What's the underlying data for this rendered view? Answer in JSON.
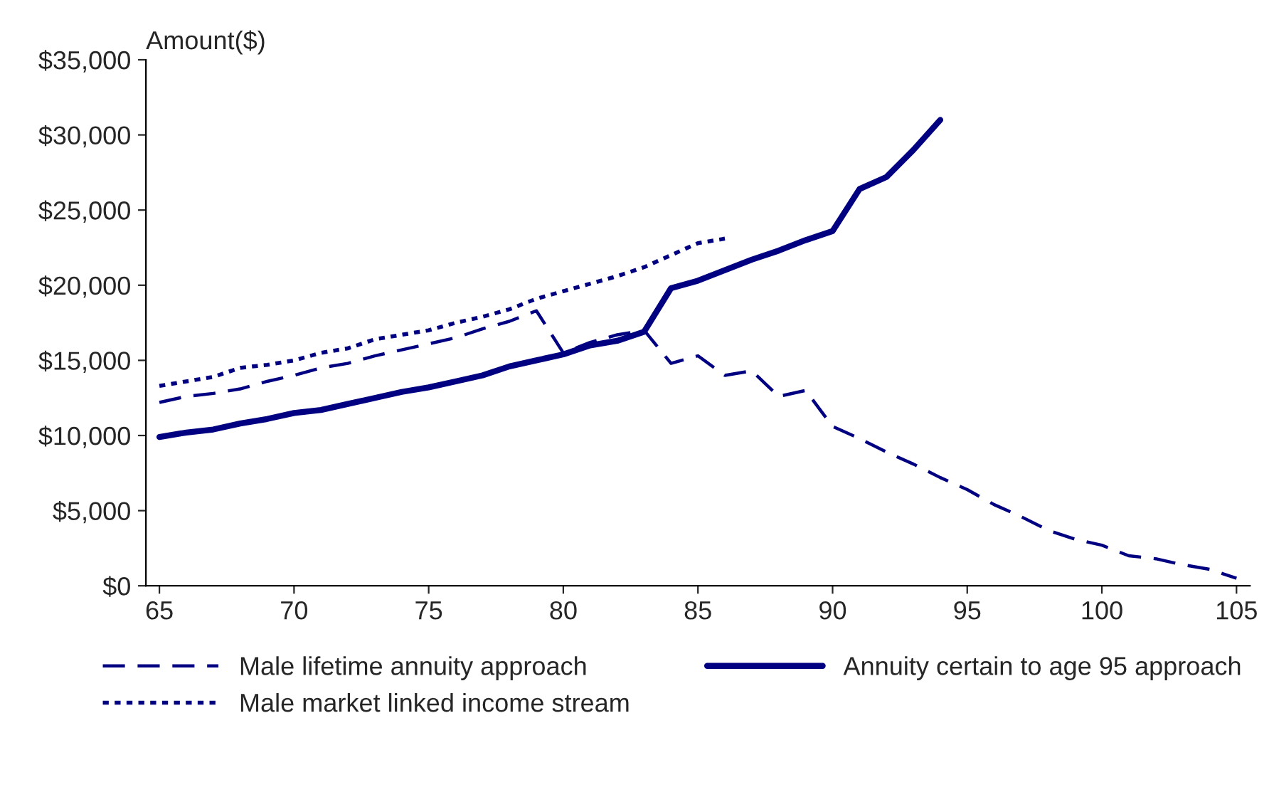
{
  "chart_data": {
    "type": "line",
    "ylabel": "Amount($)",
    "x": [
      65,
      66,
      67,
      68,
      69,
      70,
      71,
      72,
      73,
      74,
      75,
      76,
      77,
      78,
      79,
      80,
      81,
      82,
      83,
      84,
      85,
      86,
      87,
      88,
      89,
      90,
      91,
      92,
      93,
      94,
      95,
      96,
      97,
      98,
      99,
      100,
      101,
      102,
      103,
      104,
      105
    ],
    "series": [
      {
        "name": "Male lifetime annuity approach",
        "color": "#000080",
        "line_style": "dashed",
        "values": [
          12200,
          12600,
          12800,
          13100,
          13600,
          14000,
          14500,
          14800,
          15300,
          15700,
          16100,
          16500,
          17100,
          17600,
          18300,
          15500,
          16200,
          16700,
          17000,
          14800,
          15300,
          14000,
          14300,
          12600,
          13000,
          10600,
          9800,
          8900,
          8100,
          7200,
          6400,
          5400,
          4600,
          3700,
          3100,
          2700,
          2000,
          1800,
          1400,
          1100,
          500
        ]
      },
      {
        "name": "Annuity certain to age 95 approach",
        "color": "#000080",
        "line_style": "solid",
        "values": [
          9900,
          10200,
          10400,
          10800,
          11100,
          11500,
          11700,
          12100,
          12500,
          12900,
          13200,
          13600,
          14000,
          14600,
          15000,
          15400,
          16000,
          16300,
          16900,
          19800,
          20300,
          21000,
          21700,
          22300,
          23000,
          23600,
          26400,
          27200,
          29000,
          31000,
          null,
          null,
          null,
          null,
          null,
          null,
          null,
          null,
          null,
          null,
          null
        ]
      },
      {
        "name": "Male market linked income stream",
        "color": "#000080",
        "line_style": "dotted",
        "values": [
          13300,
          13600,
          13900,
          14500,
          14700,
          15000,
          15500,
          15800,
          16400,
          16700,
          17000,
          17500,
          17900,
          18400,
          19100,
          19600,
          20100,
          20600,
          21200,
          22000,
          22800,
          23100,
          null,
          null,
          null,
          null,
          null,
          null,
          null,
          null,
          null,
          null,
          null,
          null,
          null,
          null,
          null,
          null,
          null,
          null,
          null
        ]
      }
    ],
    "xlim": [
      64.5,
      105.5
    ],
    "xticks": [
      65,
      70,
      75,
      80,
      85,
      90,
      95,
      100,
      105
    ],
    "ylim": [
      0,
      35000
    ],
    "yticks": [
      {
        "value": 0,
        "label": "$0"
      },
      {
        "value": 5000,
        "label": "$5,000"
      },
      {
        "value": 10000,
        "label": "$10,000"
      },
      {
        "value": 15000,
        "label": "$15,000"
      },
      {
        "value": 20000,
        "label": "$20,000"
      },
      {
        "value": 25000,
        "label": "$25,000"
      },
      {
        "value": 30000,
        "label": "$30,000"
      },
      {
        "value": 35000,
        "label": "$35,000"
      }
    ],
    "grid": false,
    "legend": "bottom",
    "marker": "none"
  }
}
